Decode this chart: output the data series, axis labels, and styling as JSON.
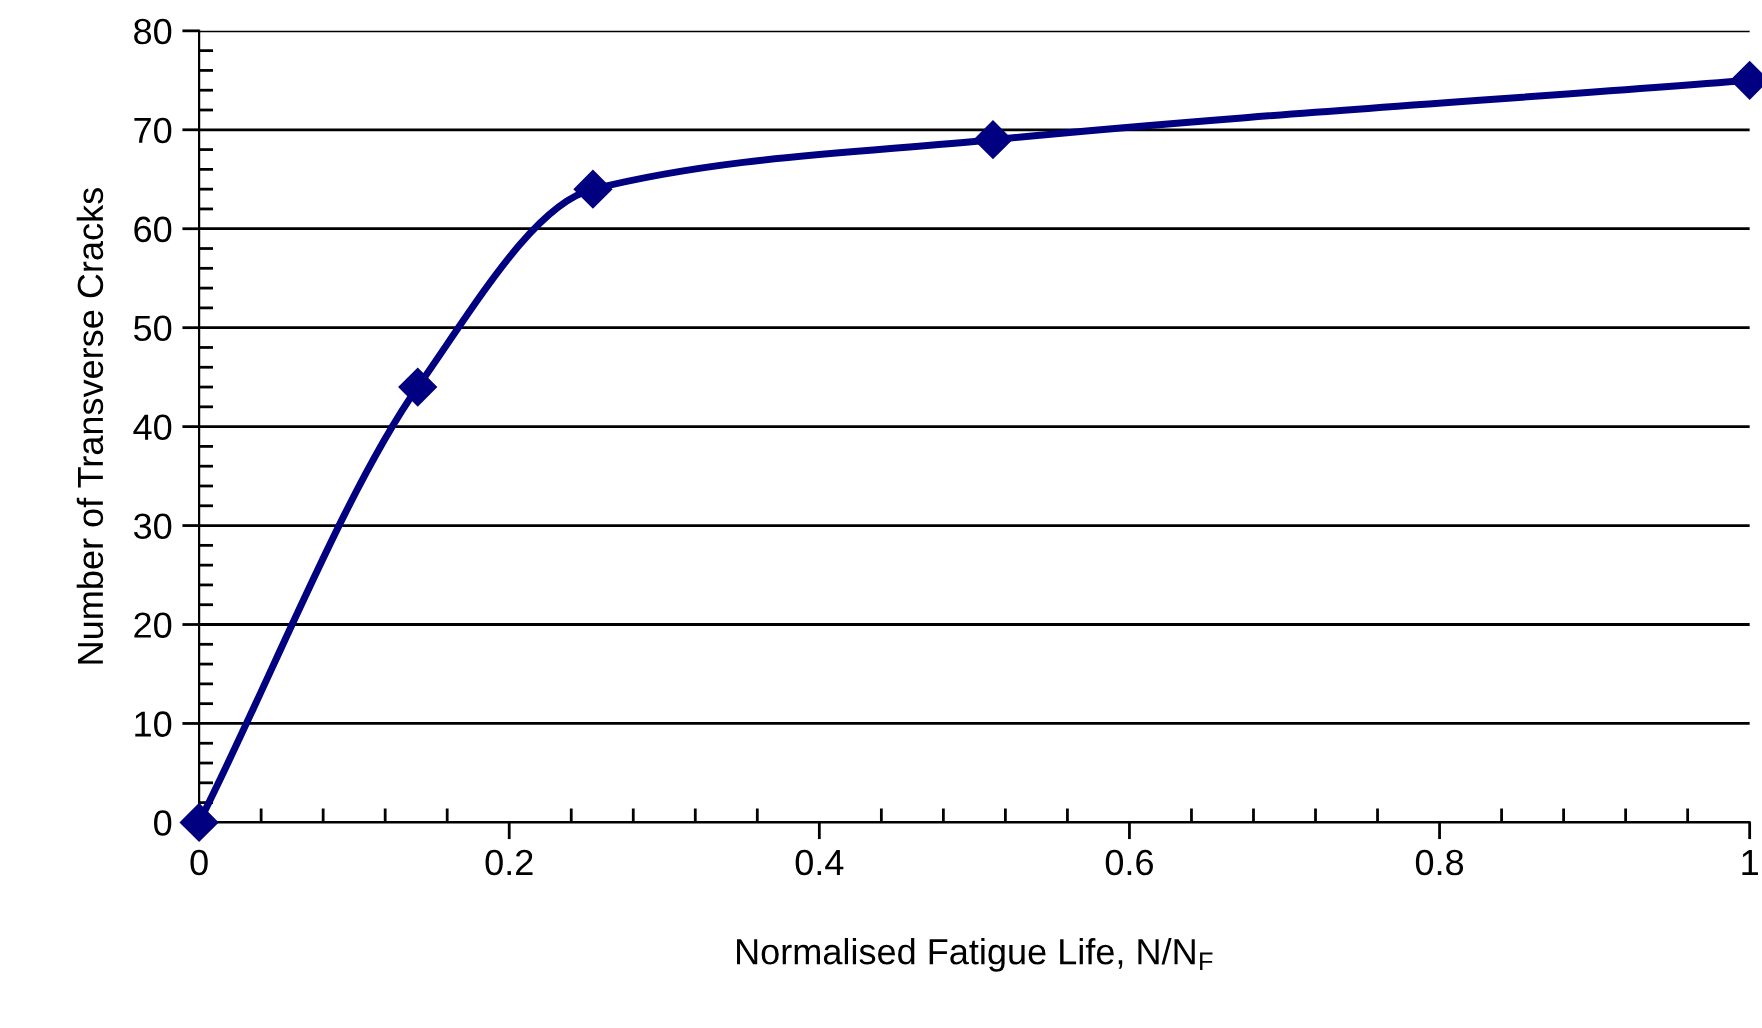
{
  "chart_data": {
    "type": "line",
    "xlabel": "Normalised Fatigue Life, N/N$_{F}$",
    "ylabel": "Number of Transverse Cracks",
    "x": [
      0,
      0.141,
      0.254,
      0.512,
      1
    ],
    "series": [
      {
        "color": "#000080",
        "values": [
          0,
          44,
          64,
          69,
          75
        ]
      }
    ],
    "xlim": [
      0,
      1
    ],
    "xticks": [
      0,
      0.2,
      0.4,
      0.6,
      0.8,
      1
    ],
    "ylim": [
      0,
      80
    ],
    "yticks": [
      0,
      10,
      20,
      30,
      40,
      50,
      60,
      70,
      80
    ],
    "grid": "y",
    "marker": "diamond",
    "line_style": "solid",
    "legend": false
  }
}
